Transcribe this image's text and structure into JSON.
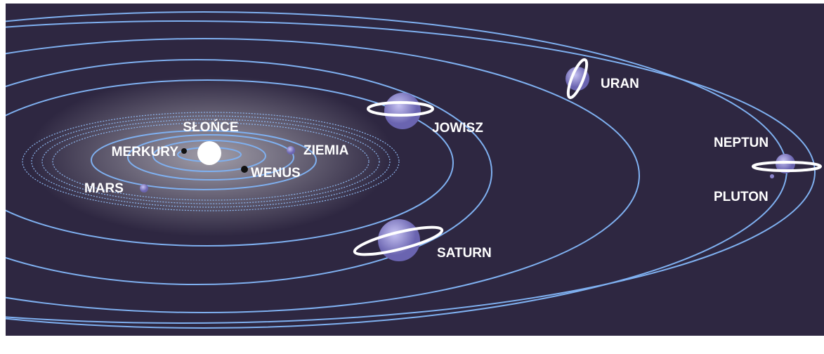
{
  "labels": [
    "SŁOŃCE",
    "MERKURY",
    "WENUS",
    "ZIEMIA",
    "MARS",
    "JOWISZ",
    "SATURN",
    "URAN",
    "NEPTUN",
    "PLUTON"
  ]
}
